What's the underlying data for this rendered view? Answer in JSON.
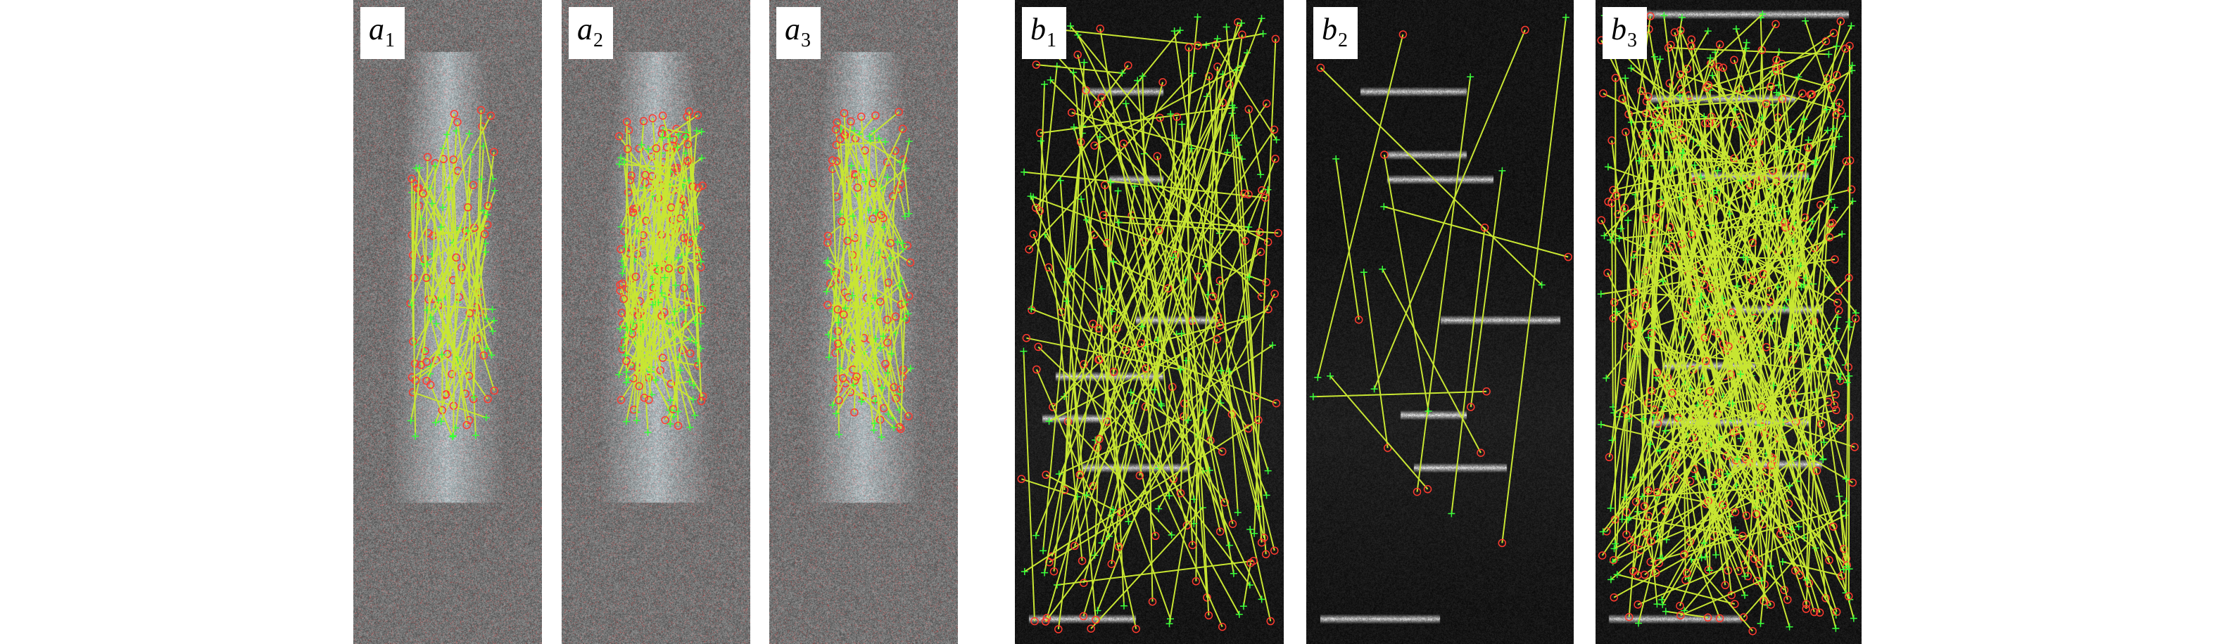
{
  "figure": {
    "panels": [
      {
        "letter": "a",
        "index": "1",
        "kind": "fan"
      },
      {
        "letter": "a",
        "index": "2",
        "kind": "fan"
      },
      {
        "letter": "a",
        "index": "3",
        "kind": "fan"
      },
      {
        "letter": "b",
        "index": "1",
        "kind": "sonar"
      },
      {
        "letter": "b",
        "index": "2",
        "kind": "sonar"
      },
      {
        "letter": "b",
        "index": "3",
        "kind": "sonar"
      }
    ]
  },
  "colors": {
    "match_line": "#c8e632",
    "match_end": "#39ff3a",
    "keypoint_circle": "#ff3b2f",
    "background": "#ffffff",
    "label_text": "#000000"
  },
  "icons": [
    "feature-match-line",
    "keypoint-circle",
    "keypoint-cross"
  ]
}
